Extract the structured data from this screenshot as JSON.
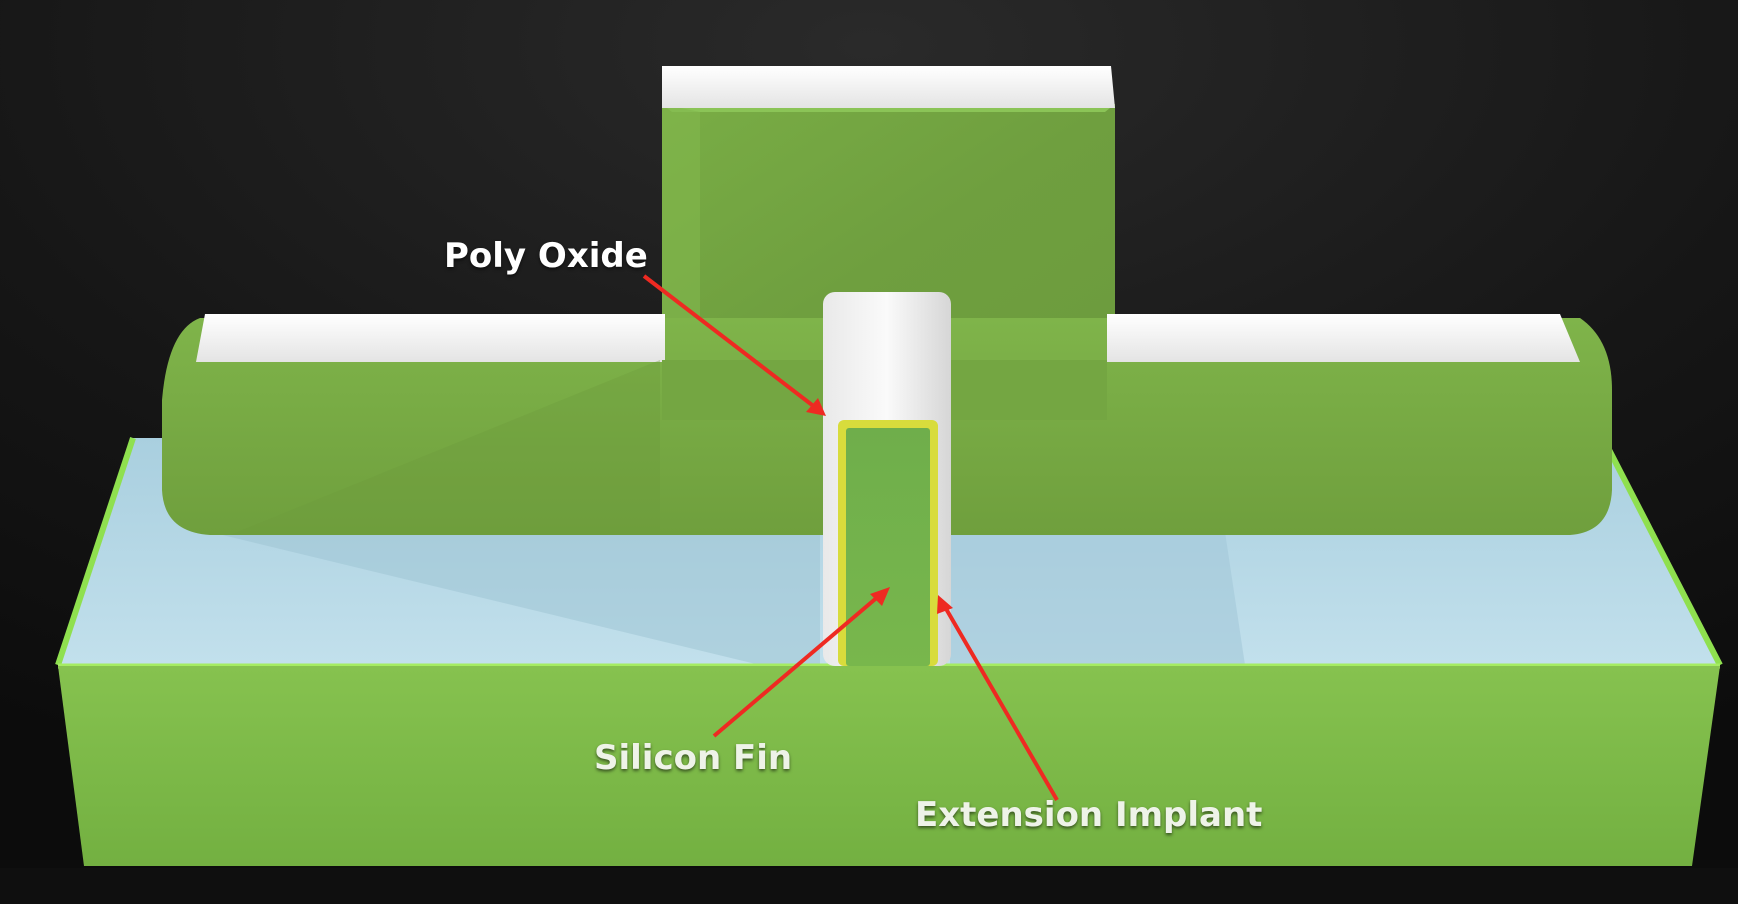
{
  "labels": {
    "poly_oxide": "Poly Oxide",
    "silicon_fin": "Silicon Fin",
    "extension_implant": "Extension Implant"
  },
  "colors": {
    "background": "#121212",
    "substrate_green": "#7cbb48",
    "gate_green": "#78ad45",
    "oxide_light_blue": "#b7d8e6",
    "poly_oxide_white": "#f4f4f4",
    "extension_implant_yellow": "#d8dc3c",
    "arrow_red": "#ee2a22",
    "label_text": "#ffffff"
  }
}
